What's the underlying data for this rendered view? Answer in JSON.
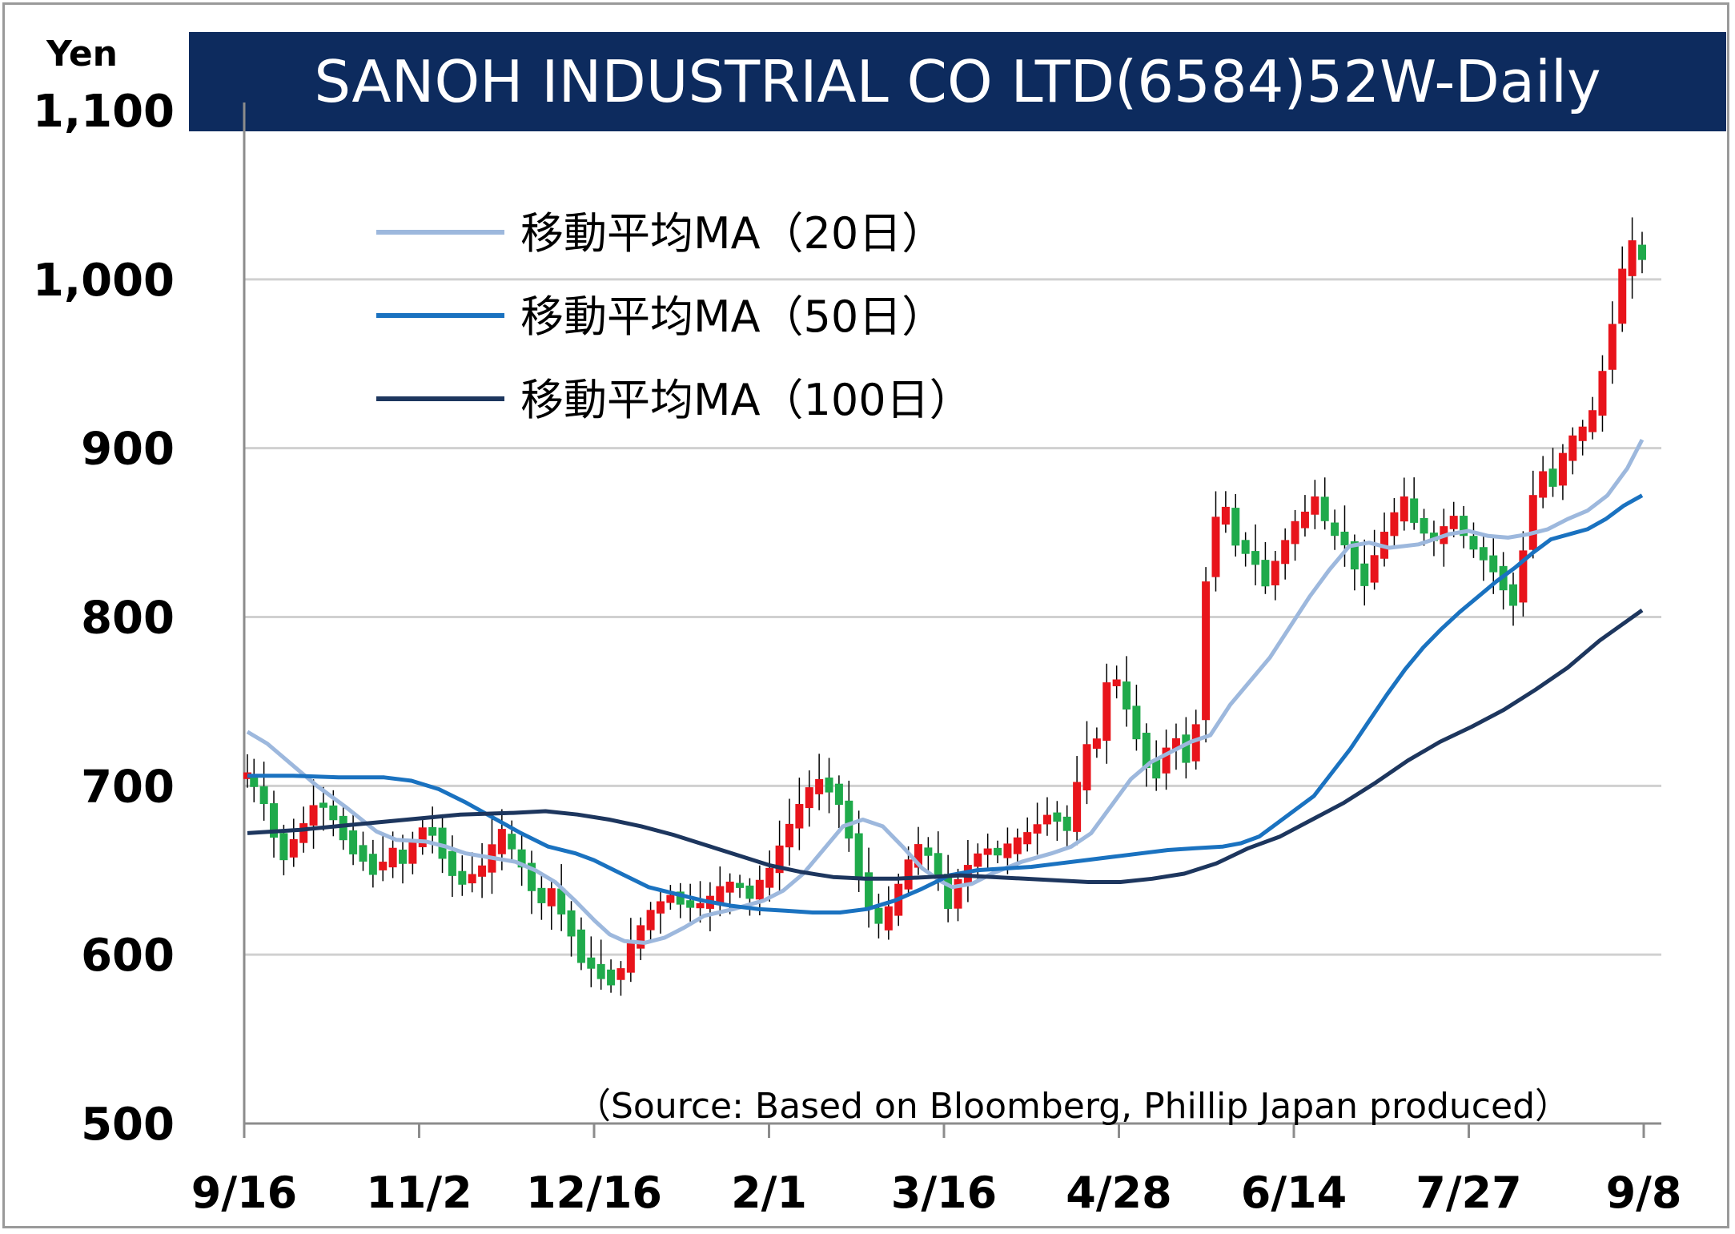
{
  "chart_data": {
    "type": "candlestick",
    "title": "SANOH INDUSTRIAL CO LTD(6584)52W-Daily",
    "ylabel": "Yen",
    "ylim": [
      500,
      1100
    ],
    "yticks": [
      {
        "value": 1100,
        "label": "1,100"
      },
      {
        "value": 1000,
        "label": "1,000"
      },
      {
        "value": 900,
        "label": "900"
      },
      {
        "value": 800,
        "label": "800"
      },
      {
        "value": 700,
        "label": "700"
      },
      {
        "value": 600,
        "label": "600"
      },
      {
        "value": 500,
        "label": "500"
      }
    ],
    "xticks": [
      "9/16",
      "11/2",
      "12/16",
      "2/1",
      "3/16",
      "4/28",
      "6/14",
      "7/27",
      "9/8"
    ],
    "grid": true,
    "legend_position": "top-left",
    "source": "（Source: Based on Bloomberg, Phillip Japan produced）",
    "up_color": "#e8141b",
    "down_color": "#1faa4b",
    "ma": [
      {
        "name": "移動平均MA（20日）",
        "color": "#9db8dd",
        "knots": [
          [
            0,
            732
          ],
          [
            4,
            725
          ],
          [
            10,
            710
          ],
          [
            14,
            700
          ],
          [
            20,
            687
          ],
          [
            26,
            673
          ],
          [
            30,
            668
          ],
          [
            36,
            667
          ],
          [
            40,
            664
          ],
          [
            44,
            660
          ],
          [
            48,
            658
          ],
          [
            54,
            655
          ],
          [
            58,
            650
          ],
          [
            62,
            643
          ],
          [
            66,
            632
          ],
          [
            70,
            620
          ],
          [
            73,
            612
          ],
          [
            76,
            608
          ],
          [
            80,
            607
          ],
          [
            84,
            610
          ],
          [
            88,
            616
          ],
          [
            92,
            623
          ],
          [
            98,
            627
          ],
          [
            104,
            632
          ],
          [
            108,
            638
          ],
          [
            112,
            648
          ],
          [
            116,
            662
          ],
          [
            120,
            676
          ],
          [
            124,
            680
          ],
          [
            128,
            676
          ],
          [
            132,
            664
          ],
          [
            136,
            651
          ],
          [
            140,
            643
          ],
          [
            142,
            640
          ],
          [
            146,
            642
          ],
          [
            150,
            648
          ],
          [
            156,
            655
          ],
          [
            162,
            660
          ],
          [
            166,
            664
          ],
          [
            170,
            672
          ],
          [
            174,
            688
          ],
          [
            178,
            704
          ],
          [
            182,
            714
          ],
          [
            186,
            720
          ],
          [
            190,
            726
          ],
          [
            194,
            730
          ],
          [
            198,
            748
          ],
          [
            202,
            762
          ],
          [
            206,
            776
          ],
          [
            210,
            794
          ],
          [
            214,
            812
          ],
          [
            218,
            828
          ],
          [
            222,
            842
          ],
          [
            226,
            844
          ],
          [
            230,
            841
          ],
          [
            236,
            843
          ],
          [
            242,
            849
          ],
          [
            246,
            851
          ],
          [
            250,
            848
          ],
          [
            254,
            847
          ],
          [
            258,
            849
          ],
          [
            262,
            852
          ],
          [
            266,
            858
          ],
          [
            270,
            863
          ],
          [
            274,
            872
          ],
          [
            278,
            888
          ],
          [
            281,
            905
          ]
        ]
      },
      {
        "name": "移動平均MA（50日）",
        "color": "#1a72c0",
        "knots": [
          [
            0,
            706
          ],
          [
            10,
            706
          ],
          [
            20,
            705
          ],
          [
            30,
            705
          ],
          [
            36,
            703
          ],
          [
            42,
            698
          ],
          [
            48,
            690
          ],
          [
            54,
            681
          ],
          [
            60,
            672
          ],
          [
            66,
            664
          ],
          [
            72,
            660
          ],
          [
            76,
            656
          ],
          [
            82,
            648
          ],
          [
            88,
            640
          ],
          [
            94,
            636
          ],
          [
            100,
            632
          ],
          [
            106,
            629
          ],
          [
            112,
            627
          ],
          [
            118,
            626
          ],
          [
            124,
            625
          ],
          [
            130,
            625
          ],
          [
            136,
            627
          ],
          [
            142,
            632
          ],
          [
            148,
            639
          ],
          [
            154,
            647
          ],
          [
            160,
            650
          ],
          [
            166,
            651
          ],
          [
            172,
            652
          ],
          [
            178,
            654
          ],
          [
            184,
            656
          ],
          [
            190,
            658
          ],
          [
            196,
            660
          ],
          [
            202,
            662
          ],
          [
            208,
            663
          ],
          [
            214,
            664
          ],
          [
            218,
            666
          ],
          [
            222,
            670
          ],
          [
            226,
            678
          ],
          [
            230,
            686
          ],
          [
            234,
            694
          ],
          [
            238,
            708
          ],
          [
            242,
            722
          ],
          [
            246,
            738
          ],
          [
            250,
            754
          ],
          [
            254,
            769
          ],
          [
            258,
            782
          ],
          [
            262,
            793
          ],
          [
            266,
            803
          ],
          [
            270,
            812
          ],
          [
            274,
            821
          ],
          [
            278,
            829
          ],
          [
            282,
            838
          ],
          [
            286,
            846
          ],
          [
            290,
            849
          ],
          [
            294,
            852
          ],
          [
            298,
            858
          ],
          [
            302,
            866
          ],
          [
            306,
            872
          ]
        ]
      },
      {
        "name": "移動平均MA（100日）",
        "color": "#1d365e",
        "knots": [
          [
            0,
            672
          ],
          [
            10,
            674
          ],
          [
            20,
            677
          ],
          [
            30,
            680
          ],
          [
            40,
            683
          ],
          [
            50,
            684
          ],
          [
            56,
            685
          ],
          [
            62,
            683
          ],
          [
            68,
            680
          ],
          [
            74,
            676
          ],
          [
            80,
            671
          ],
          [
            86,
            665
          ],
          [
            92,
            659
          ],
          [
            98,
            653
          ],
          [
            104,
            649
          ],
          [
            110,
            646
          ],
          [
            116,
            645
          ],
          [
            122,
            645
          ],
          [
            128,
            646
          ],
          [
            134,
            647
          ],
          [
            140,
            646
          ],
          [
            146,
            645
          ],
          [
            152,
            644
          ],
          [
            158,
            643
          ],
          [
            164,
            643
          ],
          [
            170,
            645
          ],
          [
            176,
            648
          ],
          [
            182,
            654
          ],
          [
            188,
            663
          ],
          [
            194,
            670
          ],
          [
            200,
            680
          ],
          [
            206,
            690
          ],
          [
            212,
            702
          ],
          [
            218,
            715
          ],
          [
            224,
            726
          ],
          [
            230,
            735
          ],
          [
            236,
            745
          ],
          [
            242,
            757
          ],
          [
            248,
            770
          ],
          [
            254,
            786
          ],
          [
            258,
            795
          ],
          [
            262,
            804
          ]
        ]
      }
    ],
    "points": [
      {
        "d": 0,
        "v": 706
      },
      {
        "d": 2,
        "v": 700
      },
      {
        "d": 5,
        "v": 689
      },
      {
        "d": 8,
        "v": 670
      },
      {
        "d": 11,
        "v": 658
      },
      {
        "d": 14,
        "v": 668
      },
      {
        "d": 17,
        "v": 676
      },
      {
        "d": 20,
        "v": 689
      },
      {
        "d": 23,
        "v": 688
      },
      {
        "d": 26,
        "v": 680
      },
      {
        "d": 29,
        "v": 670
      },
      {
        "d": 32,
        "v": 663
      },
      {
        "d": 35,
        "v": 657
      },
      {
        "d": 38,
        "v": 650
      },
      {
        "d": 41,
        "v": 655
      },
      {
        "d": 44,
        "v": 660
      },
      {
        "d": 47,
        "v": 656
      },
      {
        "d": 50,
        "v": 665
      },
      {
        "d": 53,
        "v": 674
      },
      {
        "d": 56,
        "v": 672
      },
      {
        "d": 59,
        "v": 660
      },
      {
        "d": 62,
        "v": 648
      },
      {
        "d": 65,
        "v": 643
      },
      {
        "d": 68,
        "v": 647
      },
      {
        "d": 71,
        "v": 652
      },
      {
        "d": 74,
        "v": 662
      },
      {
        "d": 77,
        "v": 672
      },
      {
        "d": 80,
        "v": 662
      },
      {
        "d": 83,
        "v": 652
      },
      {
        "d": 86,
        "v": 640
      },
      {
        "d": 89,
        "v": 630
      },
      {
        "d": 92,
        "v": 638
      },
      {
        "d": 95,
        "v": 625
      },
      {
        "d": 98,
        "v": 612
      },
      {
        "d": 101,
        "v": 598
      },
      {
        "d": 104,
        "v": 592
      },
      {
        "d": 107,
        "v": 588
      },
      {
        "d": 110,
        "v": 585
      },
      {
        "d": 113,
        "v": 592
      },
      {
        "d": 116,
        "v": 605
      },
      {
        "d": 119,
        "v": 616
      },
      {
        "d": 122,
        "v": 625
      },
      {
        "d": 125,
        "v": 631
      },
      {
        "d": 128,
        "v": 635
      },
      {
        "d": 131,
        "v": 632
      },
      {
        "d": 134,
        "v": 628
      },
      {
        "d": 137,
        "v": 630
      },
      {
        "d": 140,
        "v": 632
      },
      {
        "d": 143,
        "v": 638
      },
      {
        "d": 146,
        "v": 642
      },
      {
        "d": 149,
        "v": 640
      },
      {
        "d": 152,
        "v": 634
      },
      {
        "d": 155,
        "v": 643
      },
      {
        "d": 158,
        "v": 648
      },
      {
        "d": 161,
        "v": 665
      },
      {
        "d": 164,
        "v": 676
      },
      {
        "d": 167,
        "v": 688
      },
      {
        "d": 170,
        "v": 698
      },
      {
        "d": 173,
        "v": 701
      },
      {
        "d": 176,
        "v": 700
      },
      {
        "d": 179,
        "v": 690
      },
      {
        "d": 182,
        "v": 670
      },
      {
        "d": 185,
        "v": 648
      },
      {
        "d": 188,
        "v": 628
      },
      {
        "d": 191,
        "v": 618
      },
      {
        "d": 194,
        "v": 625
      },
      {
        "d": 197,
        "v": 640
      },
      {
        "d": 200,
        "v": 655
      },
      {
        "d": 203,
        "v": 662
      },
      {
        "d": 206,
        "v": 660
      },
      {
        "d": 209,
        "v": 645
      },
      {
        "d": 212,
        "v": 630
      },
      {
        "d": 215,
        "v": 642
      },
      {
        "d": 218,
        "v": 652
      },
      {
        "d": 221,
        "v": 660
      },
      {
        "d": 224,
        "v": 662
      },
      {
        "d": 227,
        "v": 660
      }
    ],
    "points_b": [
      {
        "d": 230,
        "v": 663
      },
      {
        "d": 233,
        "v": 666
      },
      {
        "d": 236,
        "v": 672
      },
      {
        "d": 239,
        "v": 677
      },
      {
        "d": 242,
        "v": 683
      },
      {
        "d": 245,
        "v": 680
      },
      {
        "d": 248,
        "v": 675
      },
      {
        "d": 251,
        "v": 700
      },
      {
        "d": 254,
        "v": 722
      },
      {
        "d": 257,
        "v": 728
      },
      {
        "d": 260,
        "v": 760
      },
      {
        "d": 263,
        "v": 762
      },
      {
        "d": 266,
        "v": 745
      },
      {
        "d": 269,
        "v": 730
      },
      {
        "d": 272,
        "v": 712
      },
      {
        "d": 275,
        "v": 708
      },
      {
        "d": 278,
        "v": 722
      },
      {
        "d": 281,
        "v": 728
      },
      {
        "d": 284,
        "v": 716
      },
      {
        "d": 287,
        "v": 735
      },
      {
        "d": 290,
        "v": 825
      },
      {
        "d": 293,
        "v": 858
      },
      {
        "d": 296,
        "v": 862
      },
      {
        "d": 299,
        "v": 845
      },
      {
        "d": 302,
        "v": 838
      },
      {
        "d": 305,
        "v": 832
      },
      {
        "d": 308,
        "v": 820
      },
      {
        "d": 311,
        "v": 832
      },
      {
        "d": 314,
        "v": 845
      },
      {
        "d": 317,
        "v": 855
      },
      {
        "d": 320,
        "v": 860
      },
      {
        "d": 323,
        "v": 872
      },
      {
        "d": 326,
        "v": 856
      },
      {
        "d": 329,
        "v": 848
      },
      {
        "d": 332,
        "v": 845
      },
      {
        "d": 335,
        "v": 828
      },
      {
        "d": 338,
        "v": 822
      },
      {
        "d": 341,
        "v": 835
      },
      {
        "d": 344,
        "v": 850
      },
      {
        "d": 347,
        "v": 860
      },
      {
        "d": 350,
        "v": 868
      },
      {
        "d": 353,
        "v": 858
      },
      {
        "d": 356,
        "v": 850
      },
      {
        "d": 359,
        "v": 845
      },
      {
        "d": 362,
        "v": 852
      },
      {
        "d": 365,
        "v": 860
      },
      {
        "d": 368,
        "v": 848
      },
      {
        "d": 371,
        "v": 840
      },
      {
        "d": 374,
        "v": 835
      },
      {
        "d": 377,
        "v": 828
      },
      {
        "d": 380,
        "v": 818
      },
      {
        "d": 383,
        "v": 808
      },
      {
        "d": 386,
        "v": 840
      },
      {
        "d": 389,
        "v": 872
      },
      {
        "d": 392,
        "v": 885
      },
      {
        "d": 395,
        "v": 880
      },
      {
        "d": 398,
        "v": 895
      },
      {
        "d": 401,
        "v": 905
      },
      {
        "d": 404,
        "v": 912
      },
      {
        "d": 407,
        "v": 920
      },
      {
        "d": 410,
        "v": 945
      },
      {
        "d": 413,
        "v": 975
      },
      {
        "d": 416,
        "v": 1005
      },
      {
        "d": 419,
        "v": 1020
      },
      {
        "d": 422,
        "v": 1012
      }
    ]
  },
  "legend": [
    {
      "label": "移動平均MA（20日）",
      "color": "#9db8dd"
    },
    {
      "label": "移動平均MA（50日）",
      "color": "#1a72c0"
    },
    {
      "label": "移動平均MA（100日）",
      "color": "#1d365e"
    }
  ]
}
